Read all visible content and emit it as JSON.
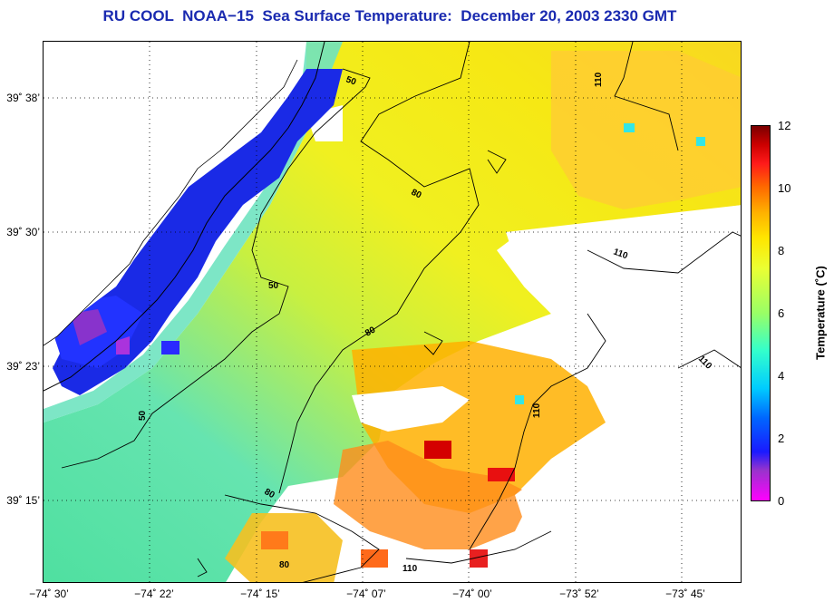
{
  "title": "RU COOL  NOAA−15  Sea Surface Temperature:  December 20, 2003 2330 GMT",
  "map": {
    "lat_labels": [
      "39˚ 38’",
      "39˚ 30’",
      "39˚ 23’",
      "39˚ 15’"
    ],
    "lon_labels": [
      "−74˚ 30’",
      "−74˚ 22’",
      "−74˚ 15’",
      "−74˚ 07’",
      "−74˚ 00’",
      "−73˚ 52’",
      "−73˚ 45’"
    ],
    "contour_labels": [
      "50",
      "50",
      "50",
      "80",
      "80",
      "80",
      "80",
      "110",
      "110",
      "110",
      "110",
      "110"
    ],
    "grid": "dotted"
  },
  "colorbar": {
    "label": "Temperature (˚C)",
    "ticks": [
      "0",
      "2",
      "4",
      "6",
      "8",
      "10",
      "12"
    ],
    "min": 0,
    "max": 12
  }
}
